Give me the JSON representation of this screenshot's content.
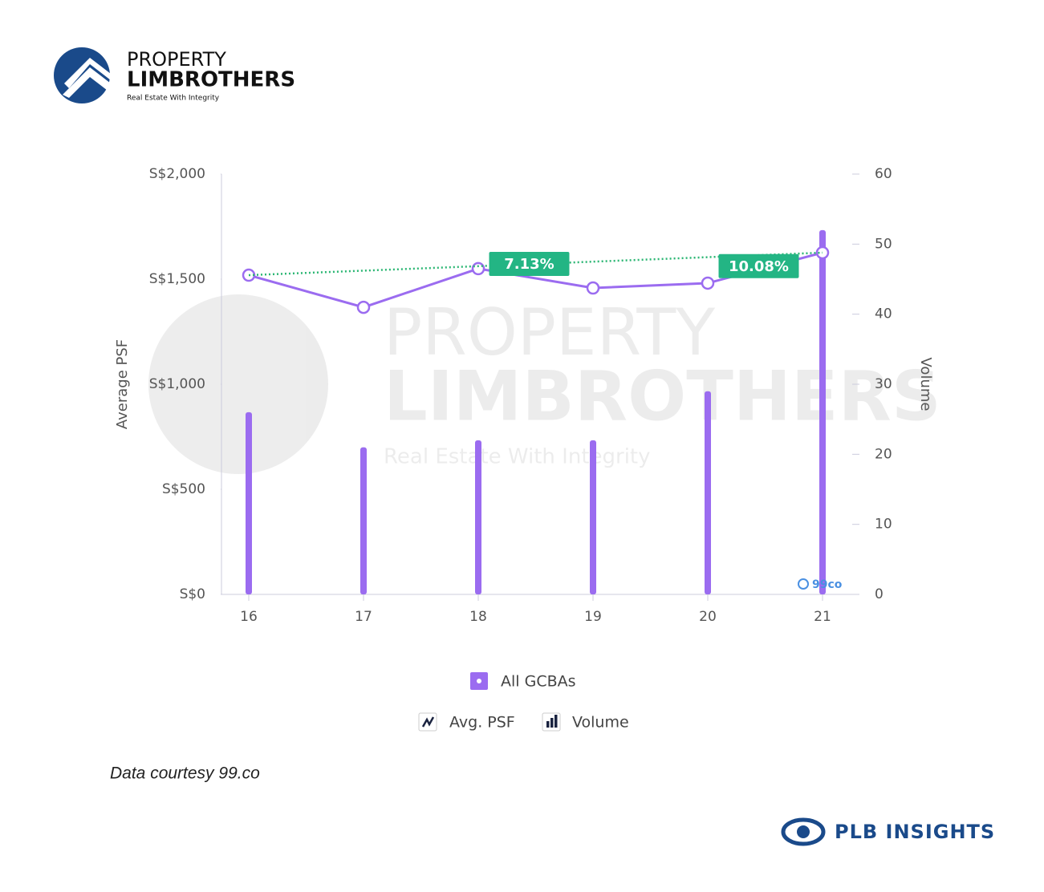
{
  "brand": {
    "name_top": "PROPERTY",
    "name_bottom": "LIMBROTHERS",
    "tagline": "Real Estate With Integrity"
  },
  "chart_data": {
    "type": "combo",
    "categories": [
      "16",
      "17",
      "18",
      "19",
      "20",
      "21"
    ],
    "y_label": "Average PSF",
    "y2_label": "Volume",
    "ylim": [
      0,
      2000
    ],
    "yticks": [
      {
        "value": 0,
        "label": "S$0"
      },
      {
        "value": 500,
        "label": "S$500"
      },
      {
        "value": 1000,
        "label": "S$1,000"
      },
      {
        "value": 1500,
        "label": "S$1,500"
      },
      {
        "value": 2000,
        "label": "S$2,000"
      }
    ],
    "y2lim": [
      0,
      60
    ],
    "y2ticks": [
      0,
      10,
      20,
      30,
      40,
      50,
      60
    ],
    "legend_group": "All GCBAs",
    "series": [
      {
        "name": "Avg. PSF",
        "type": "line",
        "color": "#9b6cf0",
        "values": [
          1519,
          1366,
          1550,
          1458,
          1481,
          1626
        ]
      },
      {
        "name": "Volume",
        "type": "bar",
        "axis": "y2",
        "color": "#9b6cf0",
        "values": [
          26,
          21,
          22,
          22,
          29,
          52
        ]
      }
    ],
    "trendline": {
      "color": "#2bb673",
      "values": [
        1519,
        1626
      ]
    },
    "annotations": [
      {
        "text": "7.13%",
        "category": "18"
      },
      {
        "text": "10.08%",
        "category": "20"
      }
    ],
    "source_mark": "99co"
  },
  "footnote": "Data courtesy 99.co",
  "footer_brand": "PLB INSIGHTS"
}
